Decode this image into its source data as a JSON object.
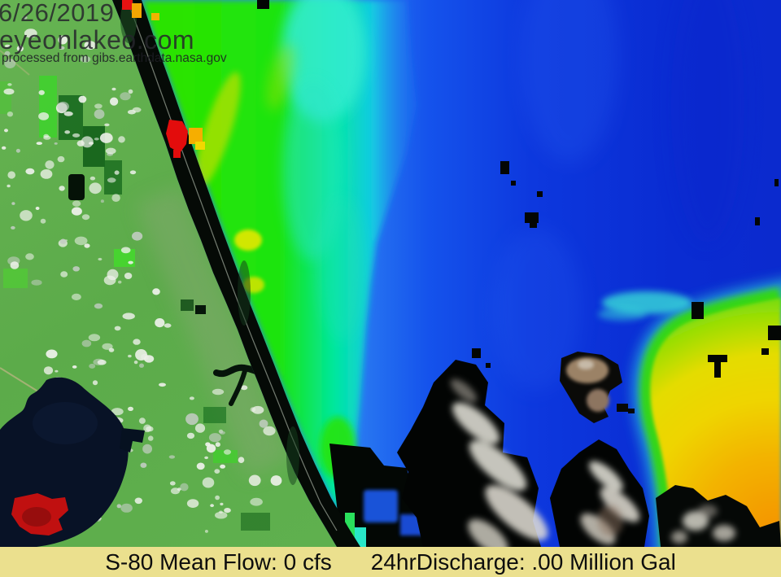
{
  "overlay": {
    "date": "6/26/2019",
    "site": "eyeonlakeo.com",
    "source": "processed from gibs.earthdata.nasa.gov"
  },
  "banner": {
    "flow_label": "S-80 Mean Flow: 0 cfs",
    "discharge_label": "24hrDischarge: .00 Million Gal"
  },
  "palette": {
    "ocean_deep": "#0a2bd2",
    "ocean_light": "#2b7df2",
    "bloom_green": "#22e305",
    "bloom_cyan": "#00e7b8",
    "bloom_yellow": "#efd400",
    "bloom_orange": "#f49300",
    "land_green": "#5fae4e",
    "lake_dark": "#081226",
    "alert_red": "#e30c0c",
    "cloud_mask_black": "#020403",
    "cloud_white": "#e8e6dc",
    "cloud_brown": "#9b8266",
    "banner_bg": "#ebe08e",
    "banner_text": "#0d0d0d",
    "watermark_text": "#26262c"
  }
}
